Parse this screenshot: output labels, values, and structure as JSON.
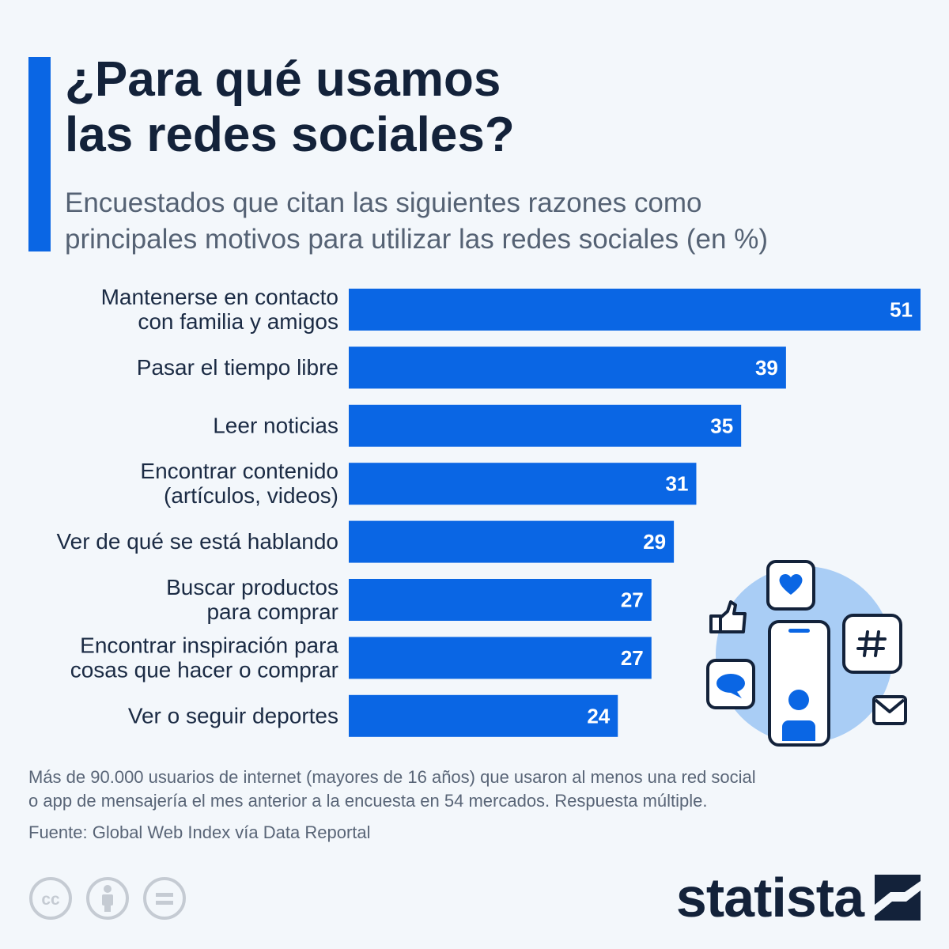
{
  "title_lines": [
    "¿Para qué usamos",
    "las redes sociales?"
  ],
  "subtitle_lines": [
    "Encuestados que citan las siguientes razones como",
    "principales motivos para utilizar las redes sociales (en %)"
  ],
  "chart_data": {
    "type": "bar",
    "orientation": "horizontal",
    "title": "¿Para qué usamos las redes sociales?",
    "categories": [
      [
        "Mantenerse en contacto",
        "con familia y amigos"
      ],
      [
        "Pasar el tiempo libre"
      ],
      [
        "Leer noticias"
      ],
      [
        "Encontrar contenido",
        "(artículos, videos)"
      ],
      [
        "Ver de qué se está hablando"
      ],
      [
        "Buscar productos",
        "para comprar"
      ],
      [
        "Encontrar inspiración para",
        "cosas que hacer o comprar"
      ],
      [
        "Ver o seguir deportes"
      ]
    ],
    "values": [
      51,
      39,
      35,
      31,
      29,
      27,
      27,
      24
    ],
    "xlim": [
      0,
      51
    ],
    "bar_color": "#0a66e4",
    "value_label_color": "#ffffff",
    "grid": false,
    "legend": "none"
  },
  "footnote_lines": [
    "Más de 90.000 usuarios de internet (mayores de 16 años) que usaron al menos una red social",
    "o app de mensajería el mes anterior a la encuesta en 54 mercados. Respuesta múltiple."
  ],
  "source": "Fuente: Global Web Index vía Data Reportal",
  "brand": "statista",
  "icons": {
    "license": [
      "creative-commons-icon",
      "attribution-icon",
      "no-derivatives-icon"
    ],
    "illustration": [
      "heart-icon",
      "thumbs-up-icon",
      "hashtag-icon",
      "chat-bubble-icon",
      "envelope-icon",
      "smartphone-icon"
    ]
  },
  "colors": {
    "accent": "#0a66e4",
    "title": "#13223a",
    "subtitle": "#556274",
    "background": "#f3f7fb",
    "illustration_circle": "#a9cdf5"
  }
}
